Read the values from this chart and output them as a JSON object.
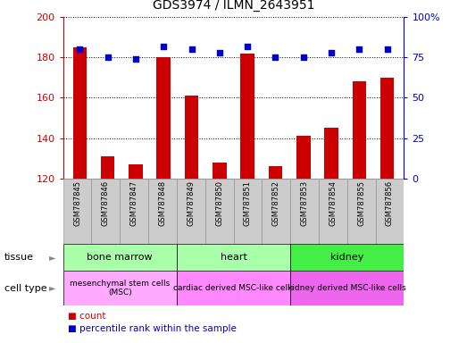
{
  "title": "GDS3974 / ILMN_2643951",
  "samples": [
    "GSM787845",
    "GSM787846",
    "GSM787847",
    "GSM787848",
    "GSM787849",
    "GSM787850",
    "GSM787851",
    "GSM787852",
    "GSM787853",
    "GSM787854",
    "GSM787855",
    "GSM787856"
  ],
  "counts": [
    185,
    131,
    127,
    180,
    161,
    128,
    182,
    126,
    141,
    145,
    168,
    170
  ],
  "percentile_ranks": [
    80,
    75,
    74,
    82,
    80,
    78,
    82,
    75,
    75,
    78,
    80,
    80
  ],
  "bar_color": "#cc0000",
  "dot_color": "#0000cc",
  "ylim_left": [
    120,
    200
  ],
  "ylim_right": [
    0,
    100
  ],
  "yticks_left": [
    120,
    140,
    160,
    180,
    200
  ],
  "yticks_right": [
    0,
    25,
    50,
    75,
    100
  ],
  "background_color": "#ffffff",
  "tissue_groups": [
    {
      "label": "bone marrow",
      "start": 0,
      "end": 3,
      "color": "#aaffaa"
    },
    {
      "label": "heart",
      "start": 4,
      "end": 7,
      "color": "#aaffaa"
    },
    {
      "label": "kidney",
      "start": 8,
      "end": 11,
      "color": "#44ee44"
    }
  ],
  "cell_type_groups": [
    {
      "label": "mesenchymal stem cells\n(MSC)",
      "start": 0,
      "end": 3,
      "color": "#ffaaff"
    },
    {
      "label": "cardiac derived MSC-like cells",
      "start": 4,
      "end": 7,
      "color": "#ff88ff"
    },
    {
      "label": "kidney derived MSC-like cells",
      "start": 8,
      "end": 11,
      "color": "#ee66ee"
    }
  ],
  "tissue_label": "tissue",
  "cell_type_label": "cell type",
  "legend_count_label": "count",
  "legend_pct_label": "percentile rank within the sample",
  "left_axis_color": "#cc0000",
  "right_axis_color": "#0000cc",
  "sample_box_color": "#cccccc",
  "right_ytick_labels": [
    "0",
    "25",
    "50",
    "75",
    "100%"
  ]
}
